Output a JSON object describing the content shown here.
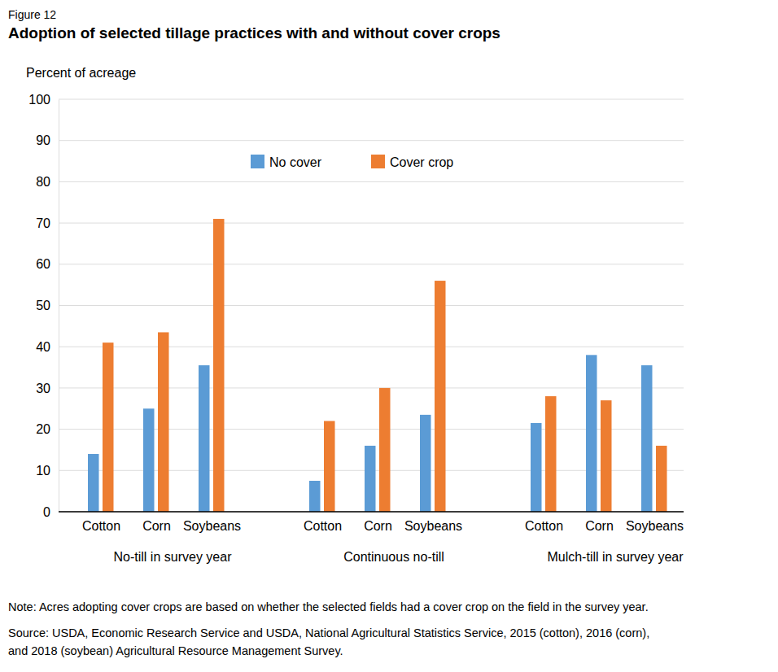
{
  "chart_data": {
    "type": "bar",
    "figure_label": "Figure 12",
    "title": "Adoption of selected tillage practices with and without cover crops",
    "y_label": "Percent of acreage",
    "categories": [
      "Cotton",
      "Corn",
      "Soybeans",
      "Cotton",
      "Corn",
      "Soybeans",
      "Cotton",
      "Corn",
      "Soybeans"
    ],
    "groups": [
      "No-till in survey year",
      "Continuous no-till",
      "Mulch-till in survey year"
    ],
    "series": [
      {
        "name": "No cover",
        "color": "#5b9bd5",
        "values": [
          14,
          25,
          35.5,
          7.5,
          16,
          23.5,
          21.5,
          38,
          35.5
        ]
      },
      {
        "name": "Cover crop",
        "color": "#ed7d31",
        "values": [
          41,
          43.5,
          71,
          22,
          30,
          56,
          28,
          27,
          16
        ]
      }
    ],
    "ylim": [
      0,
      100
    ],
    "yticks": [
      0,
      10,
      20,
      30,
      40,
      50,
      60,
      70,
      80,
      90,
      100
    ],
    "grid": true,
    "legend": "top",
    "note": "Note: Acres adopting cover crops are based on whether the selected fields had a cover crop on the field in the survey year.",
    "source": [
      "Source: USDA, Economic Research Service and USDA, National Agricultural Statistics Service, 2015 (cotton), 2016 (corn),",
      "and 2018 (soybean) Agricultural Resource Management Survey."
    ]
  }
}
